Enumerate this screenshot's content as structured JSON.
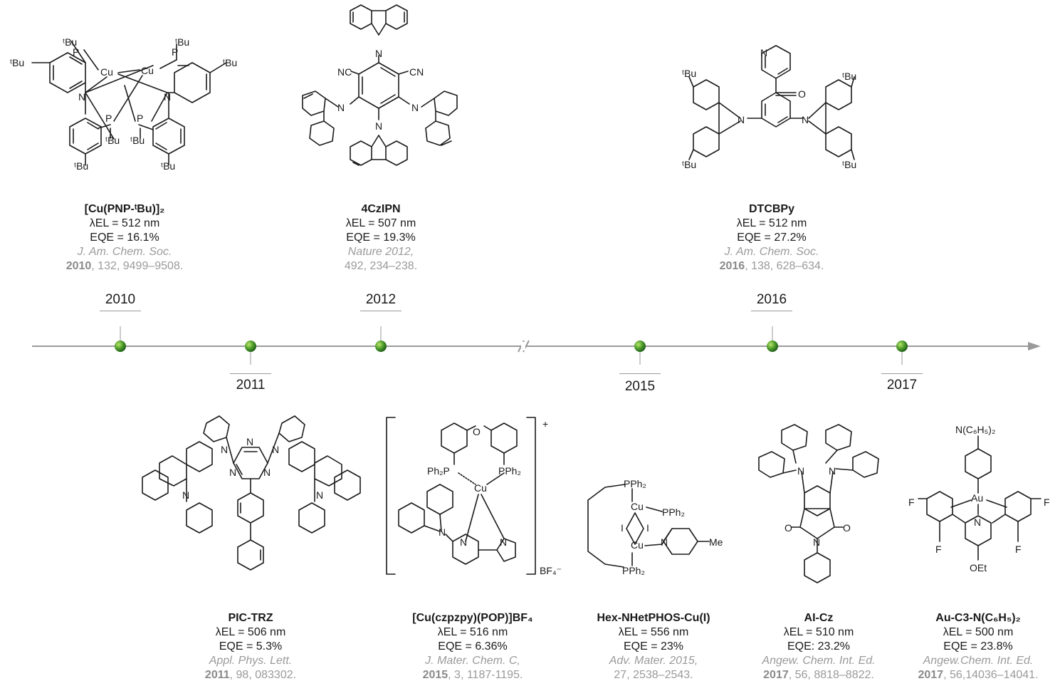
{
  "compounds_top": [
    {
      "name": "[Cu(PNP-ᵗBu)]₂",
      "lambda": "λEL = 512 nm",
      "eqe": "EQE = 16.1%",
      "journal": "J. Am. Chem. Soc.",
      "citation_year": "2010",
      "citation_rest": ", 132, 9499–9508."
    },
    {
      "name": "4CzIPN",
      "lambda": "λEL = 507 nm",
      "eqe": "EQE = 19.3%",
      "journal": "Nature 2012,",
      "citation_year": "",
      "citation_rest": "492, 234–238."
    },
    {
      "name": "DTCBPy",
      "lambda": "λEL = 512 nm",
      "eqe": "EQE = 27.2%",
      "journal": "J. Am. Chem. Soc.",
      "citation_year": "2016",
      "citation_rest": ", 138, 628–634."
    }
  ],
  "compounds_bottom": [
    {
      "name": "PIC-TRZ",
      "lambda": "λEL = 506 nm",
      "eqe": "EQE = 5.3%",
      "journal": "Appl. Phys. Lett.",
      "citation_year": "2011",
      "citation_rest": ", 98, 083302."
    },
    {
      "name": "[Cu(czpzpy)(POP)]BF₄",
      "lambda": "λEL = 516 nm",
      "eqe": "EQE = 6.36%",
      "journal": "J. Mater. Chem. C,",
      "citation_year": "2015",
      "citation_rest": ", 3, 1187-1195."
    },
    {
      "name": "Hex-NHetPHOS-Cu(I)",
      "lambda": "λEL = 556 nm",
      "eqe": "EQE = 23%",
      "journal": "Adv. Mater. 2015,",
      "citation_year": "",
      "citation_rest": "27, 2538–2543."
    },
    {
      "name": "AI-Cz",
      "lambda": "λEL = 510 nm",
      "eqe": "EQE: 23.2%",
      "journal": "Angew. Chem. Int. Ed.",
      "citation_year": "2017",
      "citation_rest": ", 56, 8818–8822."
    },
    {
      "name": "Au-C3-N(C₆H₅)₂",
      "lambda": "λEL = 500 nm",
      "eqe": "EQE = 23.8%",
      "journal": "Angew.Chem. Int. Ed.",
      "citation_year": "2017",
      "citation_rest": ", 56,14036–14041."
    }
  ],
  "years_top": [
    "2010",
    "2012",
    "2016"
  ],
  "years_bottom": [
    "2011",
    "2015",
    "2017"
  ],
  "labels": {
    "tbu": "ᵗBu",
    "tbu_alt": "ᵗBu",
    "P": "P",
    "Cu": "Cu",
    "N": "N",
    "NC": "NC",
    "CN": "CN",
    "O": "O",
    "Ph2P": "Ph₂P",
    "PPh2": "PPh₂",
    "BF4": "BF₄⁻",
    "plus": "+",
    "I": "I",
    "Me": "Me",
    "F": "F",
    "Au": "Au",
    "OEt": "OEt",
    "NPh2": "N(C₆H₅)₂"
  },
  "colors": {
    "axis": "#9a9a9a",
    "dot_light": "#a7d85b",
    "dot_dark": "#1f6b1d",
    "ref_gray": "#9a9a9a"
  }
}
